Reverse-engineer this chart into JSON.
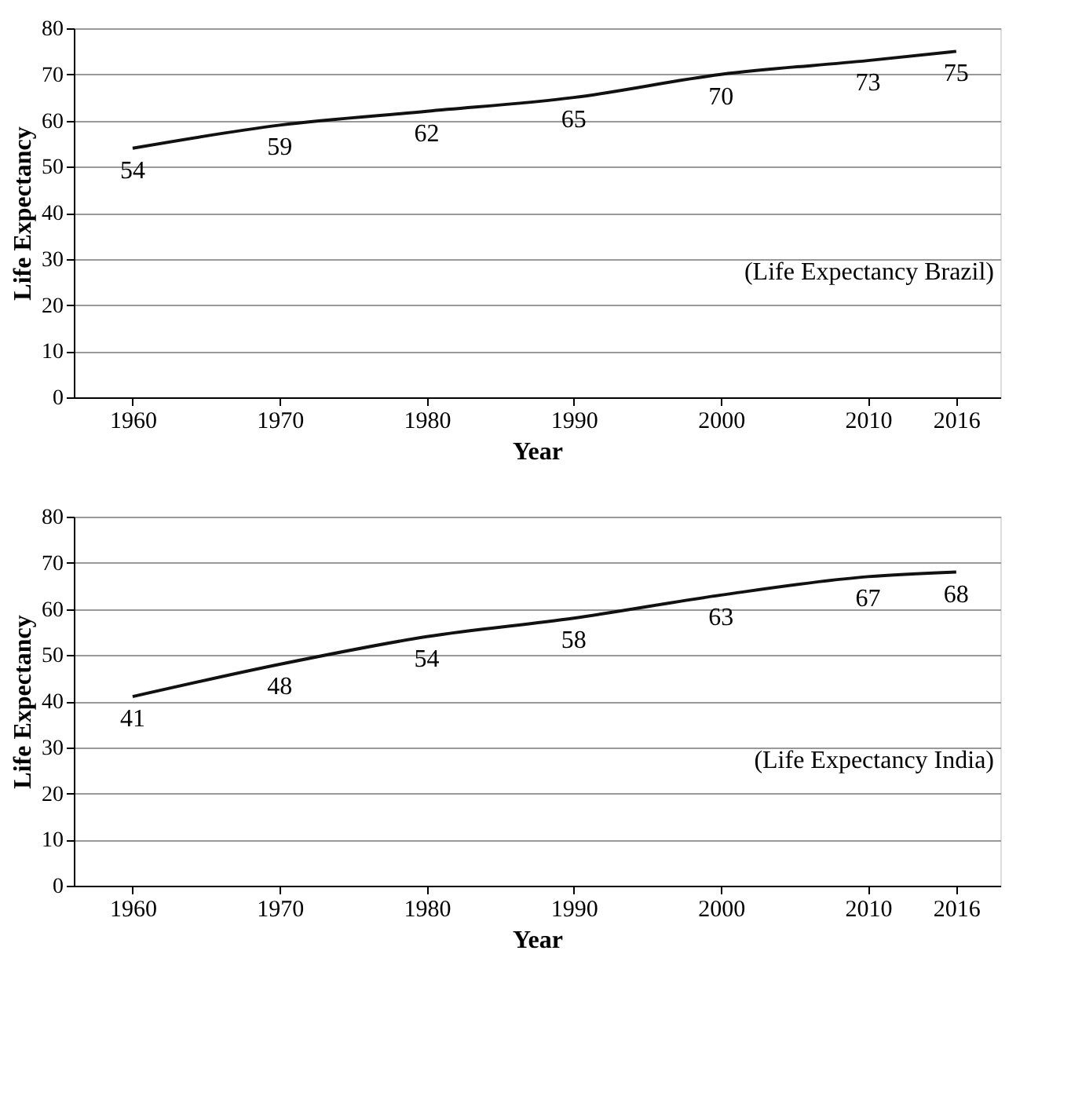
{
  "chart_data": [
    {
      "type": "line",
      "xlabel": "Year",
      "ylabel": "Life Expectancy",
      "x": [
        1960,
        1970,
        1980,
        1990,
        2000,
        2010,
        2016
      ],
      "series": [
        {
          "color": "#111111",
          "values": [
            54,
            59,
            62,
            65,
            70,
            73,
            75
          ]
        }
      ],
      "data_labels": true,
      "xlim": [
        1956,
        2019
      ],
      "xticks": [
        1960,
        1970,
        1980,
        1990,
        2000,
        2010,
        2016
      ],
      "ylim": [
        0,
        80
      ],
      "yticks": [
        0,
        10,
        20,
        30,
        40,
        50,
        60,
        70,
        80
      ],
      "grid": "y",
      "annotations": [
        "(Life Expectancy Brazil)"
      ]
    },
    {
      "type": "line",
      "xlabel": "Year",
      "ylabel": "Life Expectancy",
      "x": [
        1960,
        1970,
        1980,
        1990,
        2000,
        2010,
        2016
      ],
      "series": [
        {
          "color": "#111111",
          "values": [
            41,
            48,
            54,
            58,
            63,
            67,
            68
          ]
        }
      ],
      "data_labels": true,
      "xlim": [
        1956,
        2019
      ],
      "xticks": [
        1960,
        1970,
        1980,
        1990,
        2000,
        2010,
        2016
      ],
      "ylim": [
        0,
        80
      ],
      "yticks": [
        0,
        10,
        20,
        30,
        40,
        50,
        60,
        70,
        80
      ],
      "grid": "y",
      "annotations": [
        "(Life Expectancy India)"
      ]
    }
  ]
}
